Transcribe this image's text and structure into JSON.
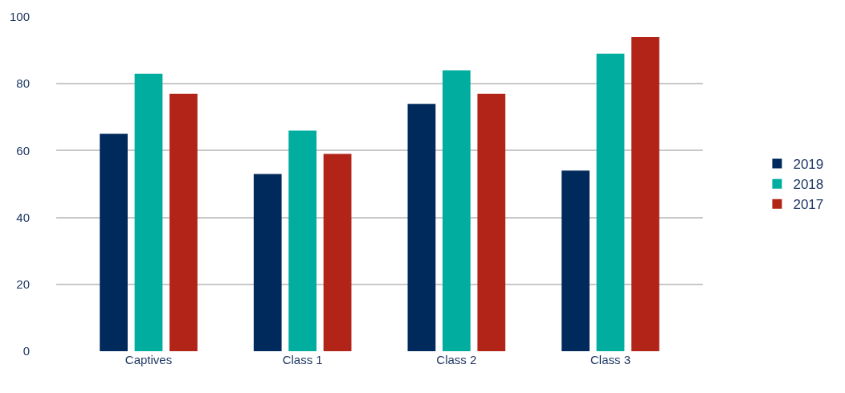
{
  "chart_data": {
    "type": "bar",
    "categories": [
      "Captives",
      "Class 1",
      "Class 2",
      "Class 3"
    ],
    "series": [
      {
        "name": "2019",
        "color": "#002a5c",
        "values": [
          65,
          53,
          74,
          54
        ]
      },
      {
        "name": "2018",
        "color": "#00ad9f",
        "values": [
          83,
          66,
          84,
          89
        ]
      },
      {
        "name": "2017",
        "color": "#b22417",
        "values": [
          77,
          59,
          77,
          94
        ]
      }
    ],
    "ylim": [
      0,
      100
    ],
    "yticks": [
      0,
      20,
      40,
      60,
      80,
      100
    ],
    "grid": "y",
    "legend": "right"
  }
}
